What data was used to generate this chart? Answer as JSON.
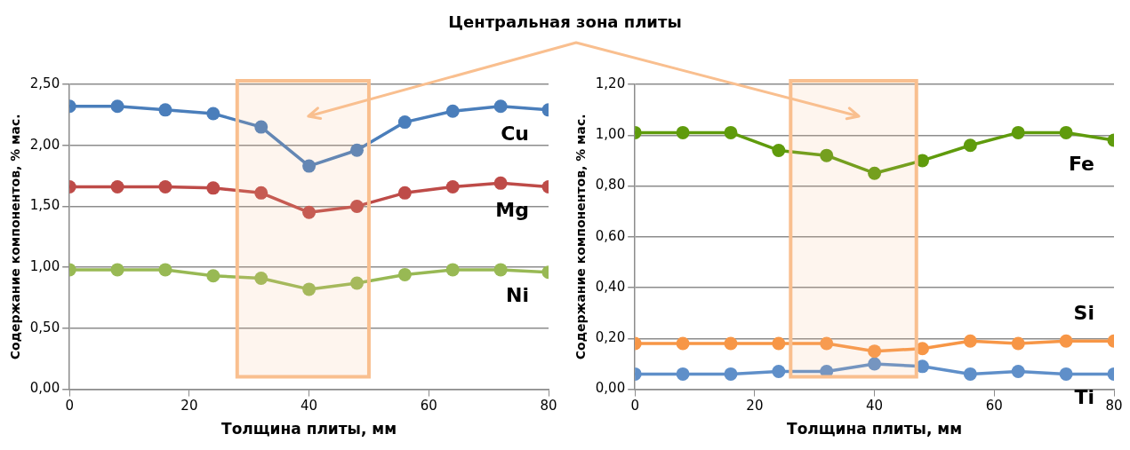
{
  "chart_data": [
    {
      "type": "line",
      "x": [
        0,
        8,
        16,
        24,
        32,
        40,
        48,
        56,
        64,
        72,
        80
      ],
      "xlabel": "Толщина плиты, мм",
      "ylabel": "Содержание компонентов, % мас.",
      "xlim": [
        0,
        80
      ],
      "xticks": [
        0,
        20,
        40,
        60,
        80
      ],
      "ylim": [
        0,
        2.5
      ],
      "yticks": [
        {
          "value": 0,
          "label": "0,00"
        },
        {
          "value": 0.5,
          "label": "0,50"
        },
        {
          "value": 1,
          "label": "1,00"
        },
        {
          "value": 1.5,
          "label": "1,50"
        },
        {
          "value": 2,
          "label": "2,00"
        },
        {
          "value": 2.5,
          "label": "2,50"
        }
      ],
      "grid": "y",
      "legend": false,
      "marker": "circle",
      "line_style": "solid",
      "series": [
        {
          "name": "Cu",
          "color": "#4a7ebb",
          "values": [
            2.32,
            2.32,
            2.29,
            2.26,
            2.15,
            1.83,
            1.96,
            2.19,
            2.28,
            2.32,
            2.29
          ]
        },
        {
          "name": "Mg",
          "color": "#be4b48",
          "values": [
            1.66,
            1.66,
            1.66,
            1.65,
            1.61,
            1.45,
            1.5,
            1.61,
            1.66,
            1.69,
            1.66
          ]
        },
        {
          "name": "Ni",
          "color": "#98b954",
          "values": [
            0.98,
            0.98,
            0.98,
            0.93,
            0.91,
            0.82,
            0.87,
            0.94,
            0.98,
            0.98,
            0.96
          ]
        }
      ],
      "bands": [
        {
          "axis": "x",
          "from": 28,
          "to": 50,
          "color": "#f9bf8f"
        }
      ],
      "annotations": [
        "Центральная зона плиты"
      ]
    },
    {
      "type": "line",
      "x": [
        0,
        8,
        16,
        24,
        32,
        40,
        48,
        56,
        64,
        72,
        80
      ],
      "xlabel": "Толщина плиты, мм",
      "ylabel": "Содержание компонентов, % мас.",
      "xlim": [
        0,
        80
      ],
      "xticks": [
        0,
        20,
        40,
        60,
        80
      ],
      "ylim": [
        0,
        1.2
      ],
      "yticks": [
        {
          "value": 0,
          "label": "0,00"
        },
        {
          "value": 0.2,
          "label": "0,20"
        },
        {
          "value": 0.4,
          "label": "0,40"
        },
        {
          "value": 0.6,
          "label": "0,60"
        },
        {
          "value": 0.8,
          "label": "0,80"
        },
        {
          "value": 1,
          "label": "1,00"
        },
        {
          "value": 1.2,
          "label": "1,20"
        }
      ],
      "grid": "y",
      "legend": false,
      "marker": "circle",
      "line_style": "solid",
      "series": [
        {
          "name": "Fe",
          "color": "#5f9b0c",
          "values": [
            1.01,
            1.01,
            1.01,
            0.94,
            0.92,
            0.85,
            0.9,
            0.96,
            1.01,
            1.01,
            0.98
          ]
        },
        {
          "name": "Si",
          "color": "#f79646",
          "values": [
            0.18,
            0.18,
            0.18,
            0.18,
            0.18,
            0.15,
            0.16,
            0.19,
            0.18,
            0.19,
            0.19
          ]
        },
        {
          "name": "Ti",
          "color": "#5f8fc9",
          "values": [
            0.06,
            0.06,
            0.06,
            0.07,
            0.07,
            0.1,
            0.09,
            0.06,
            0.07,
            0.06,
            0.06
          ]
        }
      ],
      "bands": [
        {
          "axis": "x",
          "from": 26,
          "to": 47,
          "color": "#f9bf8f"
        }
      ]
    }
  ]
}
